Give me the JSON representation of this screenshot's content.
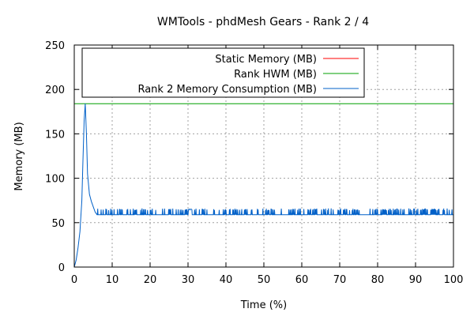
{
  "chart_data": {
    "type": "line",
    "title": "WMTools - phdMesh Gears - Rank 2 / 4",
    "xlabel": "Time (%)",
    "ylabel": "Memory (MB)",
    "xlim": [
      0,
      100
    ],
    "ylim": [
      0,
      250
    ],
    "xticks": [
      0,
      10,
      20,
      30,
      40,
      50,
      60,
      70,
      80,
      90,
      100
    ],
    "yticks": [
      0,
      50,
      100,
      150,
      200,
      250
    ],
    "x_tick_labels": [
      "0",
      "10",
      "20",
      "30",
      "40",
      "50",
      "60",
      "70",
      "80",
      "90",
      "100"
    ],
    "y_tick_labels": [
      "0",
      "50",
      "100",
      "150",
      "200",
      "250"
    ],
    "grid": true,
    "legend_position": "top",
    "series": [
      {
        "name": "Static Memory (MB)",
        "color": "#ff0000",
        "x": [],
        "y": []
      },
      {
        "name": "Rank HWM (MB)",
        "color": "#00a000",
        "x": [
          0,
          100
        ],
        "y": [
          184,
          184
        ]
      },
      {
        "name": "Rank 2 Memory Consumption (MB)",
        "color": "#0060c8",
        "x": [
          0,
          0.5,
          1,
          1.5,
          2,
          2.3,
          2.6,
          2.9,
          3.2,
          3.5,
          4,
          4.5,
          5,
          5.5,
          6,
          6.5,
          7,
          8,
          10,
          15,
          20,
          25,
          30,
          30.5,
          31,
          35,
          40,
          45,
          50,
          55,
          60,
          65,
          70,
          75,
          80,
          85,
          90,
          95,
          99,
          100
        ],
        "y": [
          0,
          8,
          22,
          40,
          75,
          120,
          165,
          184,
          150,
          105,
          82,
          74,
          68,
          62,
          59,
          60,
          60,
          60,
          60,
          60,
          60,
          60,
          60,
          65,
          59,
          59,
          59,
          59,
          59,
          59,
          59,
          59,
          59,
          59,
          59,
          59,
          59,
          60,
          59,
          59
        ],
        "spike_band": {
          "x_range": [
            5,
            100
          ],
          "low": 59,
          "high": 66
        }
      }
    ]
  }
}
